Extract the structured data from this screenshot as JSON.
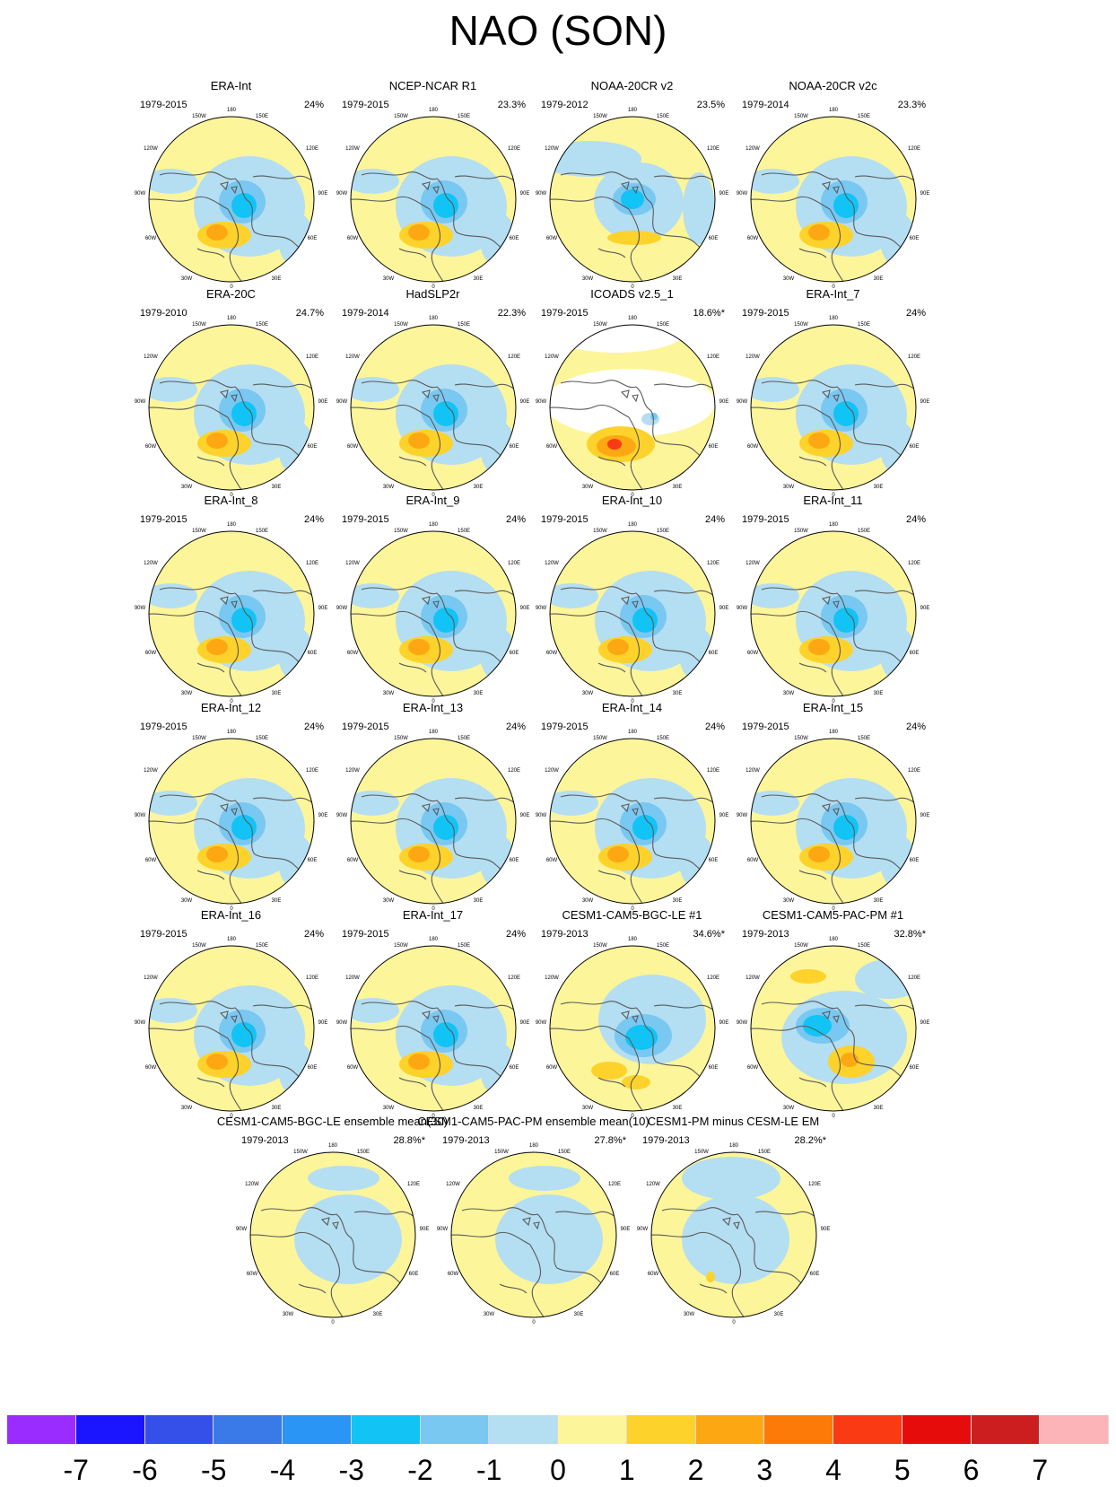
{
  "title": "NAO (SON)",
  "panels": [
    {
      "title": "ERA-Int",
      "period": "1979-2015",
      "pct": "24%",
      "style": "A"
    },
    {
      "title": "NCEP-NCAR R1",
      "period": "1979-2015",
      "pct": "23.3%",
      "style": "A"
    },
    {
      "title": "NOAA-20CR v2",
      "period": "1979-2012",
      "pct": "23.5%",
      "style": "B"
    },
    {
      "title": "NOAA-20CR v2c",
      "period": "1979-2014",
      "pct": "23.3%",
      "style": "A"
    },
    {
      "title": "ERA-20C",
      "period": "1979-2010",
      "pct": "24.7%",
      "style": "A"
    },
    {
      "title": "HadSLP2r",
      "period": "1979-2014",
      "pct": "22.3%",
      "style": "A"
    },
    {
      "title": "ICOADS v2.5_1",
      "period": "1979-2015",
      "pct": "18.6%*",
      "style": "I"
    },
    {
      "title": "ERA-Int_7",
      "period": "1979-2015",
      "pct": "24%",
      "style": "A"
    },
    {
      "title": "ERA-Int_8",
      "period": "1979-2015",
      "pct": "24%",
      "style": "A"
    },
    {
      "title": "ERA-Int_9",
      "period": "1979-2015",
      "pct": "24%",
      "style": "A"
    },
    {
      "title": "ERA-Int_10",
      "period": "1979-2015",
      "pct": "24%",
      "style": "A"
    },
    {
      "title": "ERA-Int_11",
      "period": "1979-2015",
      "pct": "24%",
      "style": "A"
    },
    {
      "title": "ERA-Int_12",
      "period": "1979-2015",
      "pct": "24%",
      "style": "A"
    },
    {
      "title": "ERA-Int_13",
      "period": "1979-2015",
      "pct": "24%",
      "style": "A"
    },
    {
      "title": "ERA-Int_14",
      "period": "1979-2015",
      "pct": "24%",
      "style": "A"
    },
    {
      "title": "ERA-Int_15",
      "period": "1979-2015",
      "pct": "24%",
      "style": "A"
    },
    {
      "title": "ERA-Int_16",
      "period": "1979-2015",
      "pct": "24%",
      "style": "A"
    },
    {
      "title": "ERA-Int_17",
      "period": "1979-2015",
      "pct": "24%",
      "style": "A"
    },
    {
      "title": "CESM1-CAM5-BGC-LE #1",
      "period": "1979-2013",
      "pct": "34.6%*",
      "style": "C"
    },
    {
      "title": "CESM1-CAM5-PAC-PM #1",
      "period": "1979-2013",
      "pct": "32.8%*",
      "style": "D"
    },
    {
      "title": "CESM1-CAM5-BGC-LE ensemble mean(30)",
      "period": "1979-2013",
      "pct": "28.8%*",
      "style": "E"
    },
    {
      "title": "CESM1-CAM5-PAC-PM ensemble mean(10)",
      "period": "1979-2013",
      "pct": "27.8%*",
      "style": "E"
    },
    {
      "title": "CESM1-PM minus CESM-LE EM",
      "period": "1979-2013",
      "pct": "28.2%*",
      "style": "F"
    }
  ],
  "map_labels": {
    "top": "180",
    "nw": "150W",
    "ne": "150E",
    "uw": "120W",
    "ue": "120E",
    "w": "90W",
    "e": "90E",
    "lw": "60W",
    "le": "60E",
    "sw": "30W",
    "se": "30E",
    "bottom": "0"
  },
  "colorbar": {
    "colors": [
      "#9a2cff",
      "#1a14ff",
      "#3550e8",
      "#3a7ae8",
      "#2a95f5",
      "#12c3f5",
      "#78c8f2",
      "#b4def2",
      "#fdf59a",
      "#fdd22a",
      "#fda812",
      "#fd7a08",
      "#f93a12",
      "#e60c0c",
      "#cc1e1e",
      "#fdb4b8"
    ],
    "ticks": [
      "-7",
      "-6",
      "-5",
      "-4",
      "-3",
      "-2",
      "-1",
      "0",
      "1",
      "2",
      "3",
      "4",
      "5",
      "6",
      "7"
    ]
  }
}
